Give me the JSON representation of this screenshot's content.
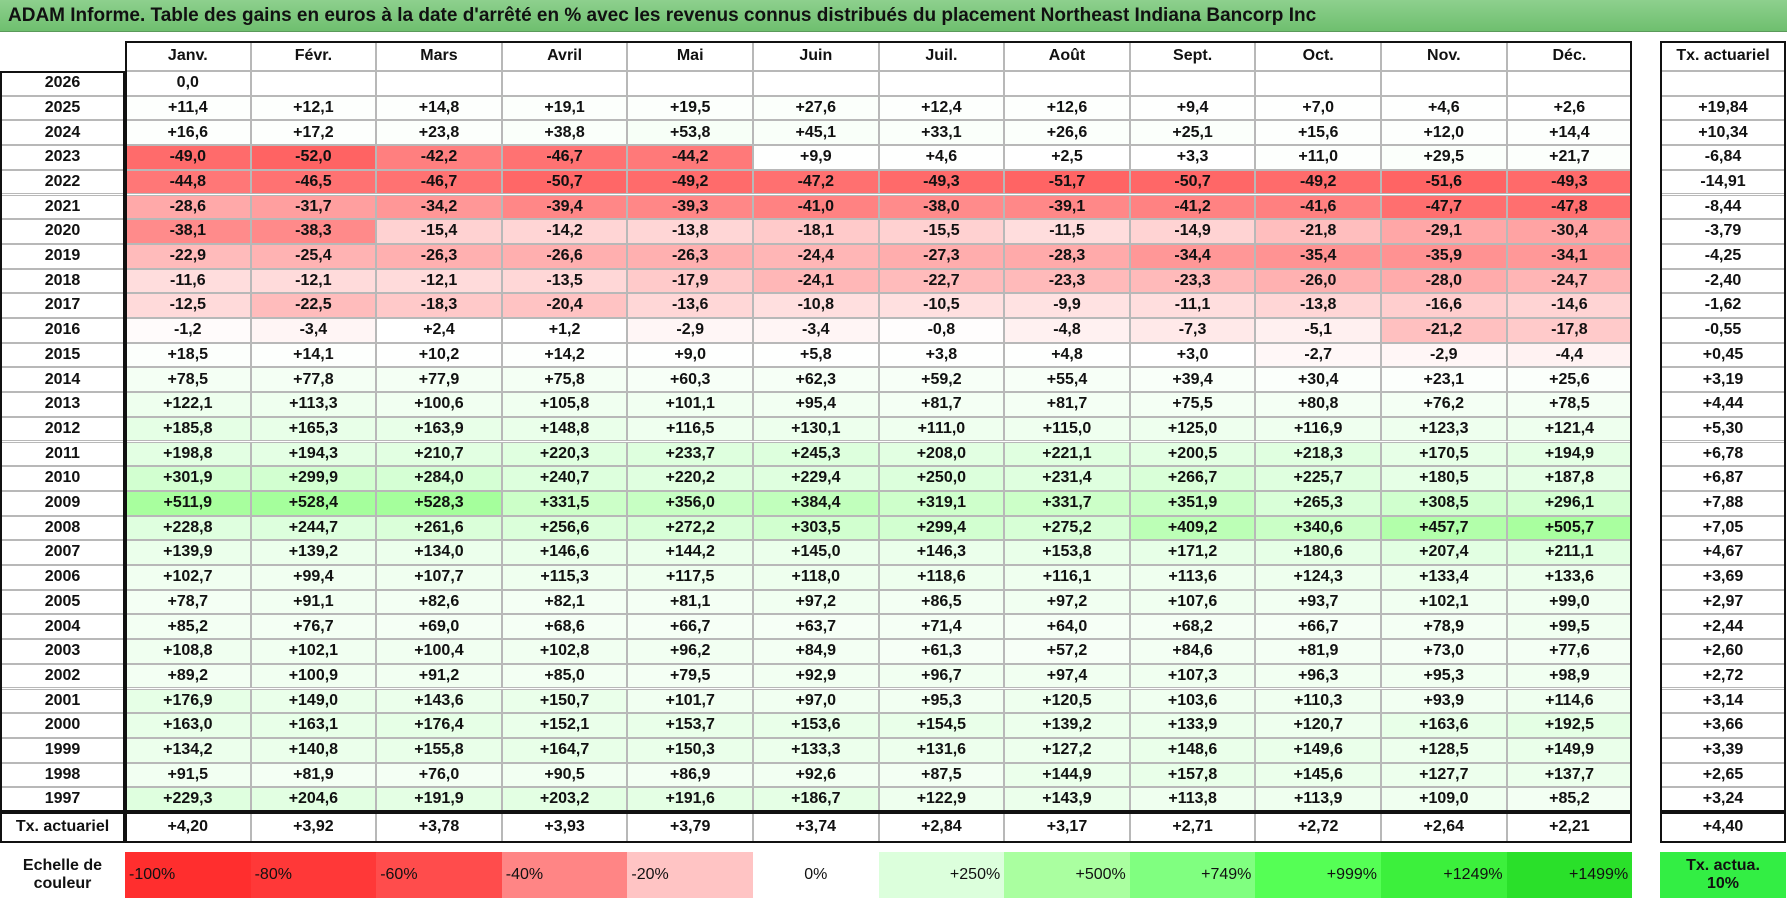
{
  "title": "ADAM Informe. Table des gains en euros à la date d'arrêté en % avec les revenus connus distribués du placement Northeast Indiana Bancorp Inc",
  "months": [
    "Janv.",
    "Févr.",
    "Mars",
    "Avril",
    "Mai",
    "Juin",
    "Juil.",
    "Août",
    "Sept.",
    "Oct.",
    "Nov.",
    "Déc."
  ],
  "tx_header": "Tx. actuariel",
  "rows": [
    {
      "year": 2026,
      "values": [
        "0,0",
        null,
        null,
        null,
        null,
        null,
        null,
        null,
        null,
        null,
        null,
        null
      ],
      "tx": null
    },
    {
      "year": 2025,
      "values": [
        "+11,4",
        "+12,1",
        "+14,8",
        "+19,1",
        "+19,5",
        "+27,6",
        "+12,4",
        "+12,6",
        "+9,4",
        "+7,0",
        "+4,6",
        "+2,6"
      ],
      "tx": "+19,84"
    },
    {
      "year": 2024,
      "values": [
        "+16,6",
        "+17,2",
        "+23,8",
        "+38,8",
        "+53,8",
        "+45,1",
        "+33,1",
        "+26,6",
        "+25,1",
        "+15,6",
        "+12,0",
        "+14,4"
      ],
      "tx": "+10,34"
    },
    {
      "year": 2023,
      "values": [
        "-49,0",
        "-52,0",
        "-42,2",
        "-46,7",
        "-44,2",
        "+9,9",
        "+4,6",
        "+2,5",
        "+3,3",
        "+11,0",
        "+29,5",
        "+21,7"
      ],
      "tx": "-6,84"
    },
    {
      "year": 2022,
      "values": [
        "-44,8",
        "-46,5",
        "-46,7",
        "-50,7",
        "-49,2",
        "-47,2",
        "-49,3",
        "-51,7",
        "-50,7",
        "-49,2",
        "-51,6",
        "-49,3"
      ],
      "tx": "-14,91"
    },
    {
      "year": 2021,
      "values": [
        "-28,6",
        "-31,7",
        "-34,2",
        "-39,4",
        "-39,3",
        "-41,0",
        "-38,0",
        "-39,1",
        "-41,2",
        "-41,6",
        "-47,7",
        "-47,8"
      ],
      "tx": "-8,44"
    },
    {
      "year": 2020,
      "values": [
        "-38,1",
        "-38,3",
        "-15,4",
        "-14,2",
        "-13,8",
        "-18,1",
        "-15,5",
        "-11,5",
        "-14,9",
        "-21,8",
        "-29,1",
        "-30,4"
      ],
      "tx": "-3,79"
    },
    {
      "year": 2019,
      "values": [
        "-22,9",
        "-25,4",
        "-26,3",
        "-26,6",
        "-26,3",
        "-24,4",
        "-27,3",
        "-28,3",
        "-34,4",
        "-35,4",
        "-35,9",
        "-34,1"
      ],
      "tx": "-4,25"
    },
    {
      "year": 2018,
      "values": [
        "-11,6",
        "-12,1",
        "-12,1",
        "-13,5",
        "-17,9",
        "-24,1",
        "-22,7",
        "-23,3",
        "-23,3",
        "-26,0",
        "-28,0",
        "-24,7"
      ],
      "tx": "-2,40"
    },
    {
      "year": 2017,
      "values": [
        "-12,5",
        "-22,5",
        "-18,3",
        "-20,4",
        "-13,6",
        "-10,8",
        "-10,5",
        "-9,9",
        "-11,1",
        "-13,8",
        "-16,6",
        "-14,6"
      ],
      "tx": "-1,62"
    },
    {
      "year": 2016,
      "values": [
        "-1,2",
        "-3,4",
        "+2,4",
        "+1,2",
        "-2,9",
        "-3,4",
        "-0,8",
        "-4,8",
        "-7,3",
        "-5,1",
        "-21,2",
        "-17,8"
      ],
      "tx": "-0,55"
    },
    {
      "year": 2015,
      "values": [
        "+18,5",
        "+14,1",
        "+10,2",
        "+14,2",
        "+9,0",
        "+5,8",
        "+3,8",
        "+4,8",
        "+3,0",
        "-2,7",
        "-2,9",
        "-4,4"
      ],
      "tx": "+0,45"
    },
    {
      "year": 2014,
      "values": [
        "+78,5",
        "+77,8",
        "+77,9",
        "+75,8",
        "+60,3",
        "+62,3",
        "+59,2",
        "+55,4",
        "+39,4",
        "+30,4",
        "+23,1",
        "+25,6"
      ],
      "tx": "+3,19"
    },
    {
      "year": 2013,
      "values": [
        "+122,1",
        "+113,3",
        "+100,6",
        "+105,8",
        "+101,1",
        "+95,4",
        "+81,7",
        "+81,7",
        "+75,5",
        "+80,8",
        "+76,2",
        "+78,5"
      ],
      "tx": "+4,44"
    },
    {
      "year": 2012,
      "values": [
        "+185,8",
        "+165,3",
        "+163,9",
        "+148,8",
        "+116,5",
        "+130,1",
        "+111,0",
        "+115,0",
        "+125,0",
        "+116,9",
        "+123,3",
        "+121,4"
      ],
      "tx": "+5,30"
    },
    {
      "year": 2011,
      "values": [
        "+198,8",
        "+194,3",
        "+210,7",
        "+220,3",
        "+233,7",
        "+245,3",
        "+208,0",
        "+221,1",
        "+200,5",
        "+218,3",
        "+170,5",
        "+194,9"
      ],
      "tx": "+6,78"
    },
    {
      "year": 2010,
      "values": [
        "+301,9",
        "+299,9",
        "+284,0",
        "+240,7",
        "+220,2",
        "+229,4",
        "+250,0",
        "+231,4",
        "+266,7",
        "+225,7",
        "+180,5",
        "+187,8"
      ],
      "tx": "+6,87"
    },
    {
      "year": 2009,
      "values": [
        "+511,9",
        "+528,4",
        "+528,3",
        "+331,5",
        "+356,0",
        "+384,4",
        "+319,1",
        "+331,7",
        "+351,9",
        "+265,3",
        "+308,5",
        "+296,1"
      ],
      "tx": "+7,88"
    },
    {
      "year": 2008,
      "values": [
        "+228,8",
        "+244,7",
        "+261,6",
        "+256,6",
        "+272,2",
        "+303,5",
        "+299,4",
        "+275,2",
        "+409,2",
        "+340,6",
        "+457,7",
        "+505,7"
      ],
      "tx": "+7,05"
    },
    {
      "year": 2007,
      "values": [
        "+139,9",
        "+139,2",
        "+134,0",
        "+146,6",
        "+144,2",
        "+145,0",
        "+146,3",
        "+153,8",
        "+171,2",
        "+180,6",
        "+207,4",
        "+211,1"
      ],
      "tx": "+4,67"
    },
    {
      "year": 2006,
      "values": [
        "+102,7",
        "+99,4",
        "+107,7",
        "+115,3",
        "+117,5",
        "+118,0",
        "+118,6",
        "+116,1",
        "+113,6",
        "+124,3",
        "+133,4",
        "+133,6"
      ],
      "tx": "+3,69"
    },
    {
      "year": 2005,
      "values": [
        "+78,7",
        "+91,1",
        "+82,6",
        "+82,1",
        "+81,1",
        "+97,2",
        "+86,5",
        "+97,2",
        "+107,6",
        "+93,7",
        "+102,1",
        "+99,0"
      ],
      "tx": "+2,97"
    },
    {
      "year": 2004,
      "values": [
        "+85,2",
        "+76,7",
        "+69,0",
        "+68,6",
        "+66,7",
        "+63,7",
        "+71,4",
        "+64,0",
        "+68,2",
        "+66,7",
        "+78,9",
        "+99,5"
      ],
      "tx": "+2,44"
    },
    {
      "year": 2003,
      "values": [
        "+108,8",
        "+102,1",
        "+100,4",
        "+102,8",
        "+96,2",
        "+84,9",
        "+61,3",
        "+57,2",
        "+84,6",
        "+81,9",
        "+73,0",
        "+77,6"
      ],
      "tx": "+2,60"
    },
    {
      "year": 2002,
      "values": [
        "+89,2",
        "+100,9",
        "+91,2",
        "+85,0",
        "+79,5",
        "+92,9",
        "+96,7",
        "+97,4",
        "+107,3",
        "+96,3",
        "+95,3",
        "+98,9"
      ],
      "tx": "+2,72"
    },
    {
      "year": 2001,
      "values": [
        "+176,9",
        "+149,0",
        "+143,6",
        "+150,7",
        "+101,7",
        "+97,0",
        "+95,3",
        "+120,5",
        "+103,6",
        "+110,3",
        "+93,9",
        "+114,6"
      ],
      "tx": "+3,14"
    },
    {
      "year": 2000,
      "values": [
        "+163,0",
        "+163,1",
        "+176,4",
        "+152,1",
        "+153,7",
        "+153,6",
        "+154,5",
        "+139,2",
        "+133,9",
        "+120,7",
        "+163,6",
        "+192,5"
      ],
      "tx": "+3,66"
    },
    {
      "year": 1999,
      "values": [
        "+134,2",
        "+140,8",
        "+155,8",
        "+164,7",
        "+150,3",
        "+133,3",
        "+131,6",
        "+127,2",
        "+148,6",
        "+149,6",
        "+128,5",
        "+149,9"
      ],
      "tx": "+3,39"
    },
    {
      "year": 1998,
      "values": [
        "+91,5",
        "+81,9",
        "+76,0",
        "+90,5",
        "+86,9",
        "+92,6",
        "+87,5",
        "+144,9",
        "+157,8",
        "+145,6",
        "+127,7",
        "+137,7"
      ],
      "tx": "+2,65"
    },
    {
      "year": 1997,
      "values": [
        "+229,3",
        "+204,6",
        "+191,9",
        "+203,2",
        "+191,6",
        "+186,7",
        "+122,9",
        "+143,9",
        "+113,8",
        "+113,9",
        "+109,0",
        "+85,2"
      ],
      "tx": "+3,24"
    }
  ],
  "total_row": {
    "label": "Tx. actuariel",
    "values": [
      "+4,20",
      "+3,92",
      "+3,78",
      "+3,93",
      "+3,79",
      "+3,74",
      "+2,84",
      "+3,17",
      "+2,71",
      "+2,72",
      "+2,64",
      "+2,21"
    ],
    "tx": "+4,40"
  },
  "scale": {
    "label": "Echelle de couleur",
    "stops": [
      {
        "label": "-100%",
        "color": "#ff2e2e"
      },
      {
        "label": "-80%",
        "color": "#ff3838"
      },
      {
        "label": "-60%",
        "color": "#ff4c4c"
      },
      {
        "label": "-40%",
        "color": "#ff8585"
      },
      {
        "label": "-20%",
        "color": "#ffc4c4"
      },
      {
        "label": "0%",
        "color": "#ffffff"
      },
      {
        "label": "+250%",
        "color": "#dcffdc"
      },
      {
        "label": "+500%",
        "color": "#aaffa0"
      },
      {
        "label": "+749%",
        "color": "#80ff80"
      },
      {
        "label": "+999%",
        "color": "#55ff55"
      },
      {
        "label": "+1249%",
        "color": "#3cf03c"
      },
      {
        "label": "+1499%",
        "color": "#2ae02a"
      }
    ],
    "extra": {
      "label": "Tx. actua. 10%",
      "color": "#33ee44"
    }
  }
}
